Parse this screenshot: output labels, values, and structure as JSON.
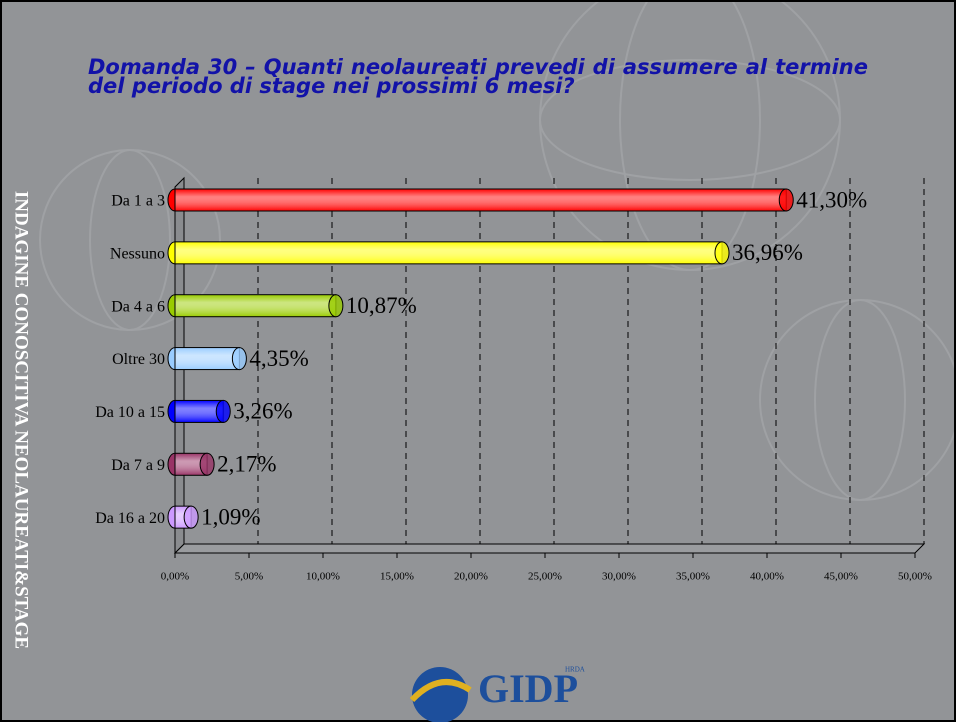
{
  "side_text": "INDAGINE CONOSCITIVA NEOLAUREATI&STAGE",
  "logo": {
    "name": "GIDP",
    "tag": "HRDA"
  },
  "chart_data": {
    "type": "bar",
    "orientation": "horizontal",
    "title": "Domanda 30 – Quanti neolaureati prevedi di assumere al termine del periodo di stage nei prossimi 6 mesi?",
    "categories": [
      "Da 1 a 3",
      "Nessuno",
      "Da 4 a 6",
      "Oltre 30",
      "Da 10 a 15",
      "Da 7 a 9",
      "Da 16 a 20"
    ],
    "values": [
      41.3,
      36.96,
      10.87,
      4.35,
      3.26,
      2.17,
      1.09
    ],
    "value_labels": [
      "41,30%",
      "36,96%",
      "10,87%",
      "4,35%",
      "3,26%",
      "2,17%",
      "1,09%"
    ],
    "colors": [
      "#ff0000",
      "#ffff00",
      "#99cc00",
      "#99ccff",
      "#0000ff",
      "#993366",
      "#cc99ff"
    ],
    "xlim": [
      0,
      50
    ],
    "xticks": [
      {
        "value": 0,
        "label": "0,00%"
      },
      {
        "value": 5,
        "label": "5,00%"
      },
      {
        "value": 10,
        "label": "10,00%"
      },
      {
        "value": 15,
        "label": "15,00%"
      },
      {
        "value": 20,
        "label": "20,00%"
      },
      {
        "value": 25,
        "label": "25,00%"
      },
      {
        "value": 30,
        "label": "30,00%"
      },
      {
        "value": 35,
        "label": "35,00%"
      },
      {
        "value": 40,
        "label": "40,00%"
      },
      {
        "value": 45,
        "label": "45,00%"
      },
      {
        "value": 50,
        "label": "50,00%"
      }
    ],
    "grid": true
  }
}
